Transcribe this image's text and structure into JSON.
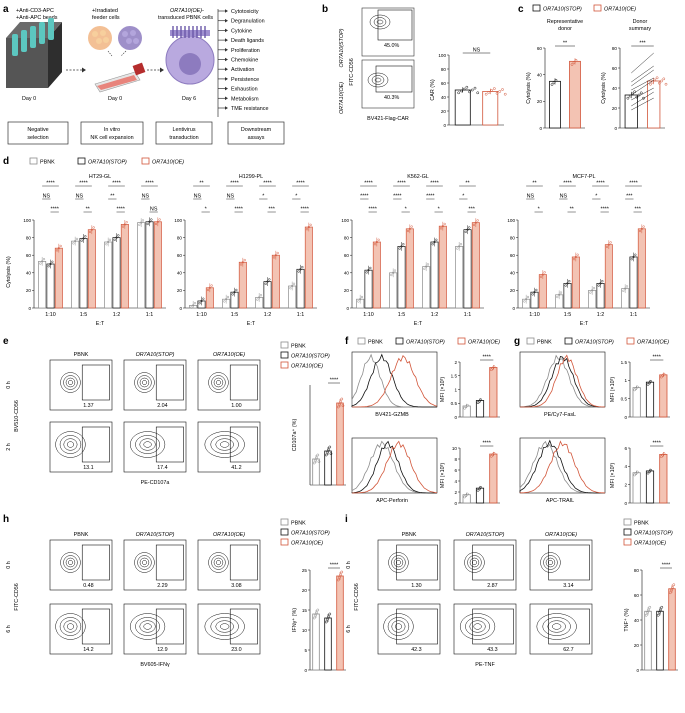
{
  "panels": {
    "a": "a",
    "b": "b",
    "c": "c",
    "d": "d",
    "e": "e",
    "f": "f",
    "g": "g",
    "h": "h",
    "i": "i"
  },
  "legend": {
    "pbnk": "PBNK",
    "stop": "OR7A10(STOP)",
    "oe": "OR7A10(OE)"
  },
  "colors": {
    "pbnk": "#8c8c8c",
    "stop": "#111111",
    "oe": "#d2563a",
    "oe_fill": "#f3c3b3",
    "cell_green": "#5fa86f",
    "cell_purple": "#8d7bbf",
    "cell_orange": "#f0b07a"
  },
  "panel_a": {
    "label1": "+Anti-CD3-APC",
    "label2": "+Anti-APC beads",
    "label3": "+Irradiated",
    "label3b": "feeder cells",
    "label4": "OR7A10(OE)-",
    "label4b": "transduced PBNK cells",
    "day_a": "Day 0",
    "day_b": "Day 0",
    "day_c": "Day 6",
    "box1": [
      "Negative",
      "selection"
    ],
    "box2": [
      "In vitro",
      "NK cell expansion"
    ],
    "box3": [
      "Lentivirus",
      "transduction"
    ],
    "box4": [
      "Downstream",
      "assays"
    ],
    "assays": [
      "Cytotoxicity",
      "Degranulation",
      "Cytokine",
      "Death ligands",
      "Proliferation",
      "Chemokine",
      "Activation",
      "Persistence",
      "Exhaustion",
      "Metabolism",
      "TME resistance"
    ]
  },
  "panel_b": {
    "y_axis": "FITC-CD56",
    "x_axis": "BV421-Flag-CAR",
    "row1": "OR7A10(STOP)",
    "row2": "OR7A10(OE)",
    "gate1": "45.0%",
    "gate2": "40.3%",
    "ticks_y": [
      "10⁴",
      "10³",
      "0"
    ],
    "ticks_x": [
      "0",
      "10³",
      "10⁴",
      "10⁵"
    ],
    "sig": "NS"
  },
  "panel_c": {
    "left_title": [
      "Representative",
      "donor"
    ],
    "right_title": [
      "Donor",
      "summary"
    ],
    "ylabel": "Cytolysis (%)",
    "sig_left": "**",
    "sig_right": "***"
  },
  "panel_d": {
    "ylabel": "Cytolysis (%)",
    "xlabel": "E:T",
    "ticks_y": [
      "0",
      "20",
      "40",
      "60",
      "80",
      "100"
    ],
    "ratios": [
      "1:10",
      "1:5",
      "1:2",
      "1:1"
    ]
  },
  "panel_e": {
    "cols": [
      "PBNK",
      "OR7A10(STOP)",
      "OR7A10(OE)"
    ],
    "rows": [
      "0 h",
      "2 h"
    ],
    "y_axis": "BV510-CD56",
    "x_axis": "PE-CD107a",
    "values_0h": [
      "1.37",
      "2.04",
      "1.00"
    ],
    "values_2h": [
      "13.1",
      "17.4",
      "41.2"
    ],
    "bar_ylabel": "CD107a⁺ (%)",
    "bar_ticks": [
      "0",
      "10",
      "20",
      "30",
      "40",
      "50"
    ],
    "sig": "****"
  },
  "panel_f": {
    "top_x": "BV421-GZMB",
    "bottom_x": "APC-Perforin",
    "mfi_top": "MFI (×10³)",
    "mfi_bottom": "MFI (×10³)",
    "sig": "****"
  },
  "panel_g": {
    "top_x": "PE/Cy7-FasL",
    "bottom_x": "APC-TRAIL",
    "mfi_top": "MFI (×10³)",
    "mfi_bottom": "MFI (×10³)",
    "sig": "****"
  },
  "panel_h": {
    "cols": [
      "PBNK",
      "OR7A10(STOP)",
      "OR7A10(OE)"
    ],
    "rows": [
      "0 h",
      "6 h"
    ],
    "y_axis": "FITC-CD56",
    "x_axis": "BV605-IFNγ",
    "values_0h": [
      "0.48",
      "2.29",
      "3.08"
    ],
    "values_6h": [
      "14.2",
      "12.9",
      "23.0"
    ],
    "bar_ylabel": "IFNγ⁺ (%)",
    "sig": "****"
  },
  "panel_i": {
    "cols": [
      "PBNK",
      "OR7A10(STOP)",
      "OR7A10(OE)"
    ],
    "rows": [
      "0 h",
      "6 h"
    ],
    "y_axis": "FITC-CD56",
    "x_axis": "PE-TNF",
    "values_0h": [
      "1.30",
      "2.87",
      "3.14"
    ],
    "values_6h": [
      "42.3",
      "43.3",
      "62.7"
    ],
    "bar_ylabel": "TNF⁺ (%)",
    "sig": "****"
  },
  "chart_data": [
    {
      "type": "bar",
      "panel": "b",
      "ylabel": "CAR (%)",
      "categories": [
        "OR7A10(STOP)",
        "OR7A10(OE)"
      ],
      "values": [
        50,
        48
      ],
      "ylim": [
        0,
        100
      ],
      "ticks": [
        0,
        20,
        40,
        60,
        80,
        100
      ]
    },
    {
      "type": "bar",
      "panel": "c-left",
      "ylabel": "Cytolysis (%)",
      "categories": [
        "OR7A10(STOP)",
        "OR7A10(OE)"
      ],
      "values": [
        35,
        50
      ],
      "ylim": [
        0,
        60
      ],
      "ticks": [
        0,
        20,
        40,
        60
      ]
    },
    {
      "type": "bar",
      "panel": "c-right",
      "ylabel": "Cytolysis (%)",
      "categories": [
        "OR7A10(STOP)",
        "OR7A10(OE)"
      ],
      "values": [
        33,
        47
      ],
      "ylim": [
        0,
        80
      ],
      "ticks": [
        0,
        20,
        40,
        60,
        80
      ]
    },
    {
      "type": "bar",
      "panel": "d",
      "title": "HT29-GL",
      "categories": [
        "1:10",
        "1:5",
        "1:2",
        "1:1"
      ],
      "series": [
        {
          "name": "PBNK",
          "values": [
            53,
            76,
            75,
            97
          ]
        },
        {
          "name": "OR7A10(STOP)",
          "values": [
            50,
            79,
            80,
            98
          ]
        },
        {
          "name": "OR7A10(OE)",
          "values": [
            68,
            89,
            95,
            98
          ]
        }
      ],
      "ylim": [
        0,
        100
      ],
      "sig_top": [
        "****",
        "****",
        "****",
        "****"
      ],
      "sig_mid": [
        "NS",
        "NS",
        "**",
        "NS"
      ],
      "sig_bot": [
        "****",
        "**",
        "****",
        "NS"
      ]
    },
    {
      "type": "bar",
      "panel": "d",
      "title": "H1299-PL",
      "categories": [
        "1:10",
        "1:5",
        "1:2",
        "1:1"
      ],
      "series": [
        {
          "name": "PBNK",
          "values": [
            3,
            10,
            12,
            25
          ]
        },
        {
          "name": "OR7A10(STOP)",
          "values": [
            8,
            18,
            30,
            44
          ]
        },
        {
          "name": "OR7A10(OE)",
          "values": [
            23,
            52,
            60,
            92
          ]
        }
      ],
      "ylim": [
        0,
        100
      ],
      "sig_top": [
        "**",
        "****",
        "****",
        "****"
      ],
      "sig_mid": [
        "NS",
        "NS",
        "*",
        "*"
      ],
      "sig_bot": [
        "*",
        "****",
        "***",
        "****"
      ]
    },
    {
      "type": "bar",
      "panel": "d",
      "title": "K562-GL",
      "categories": [
        "1:10",
        "1:5",
        "1:2",
        "1:1"
      ],
      "series": [
        {
          "name": "PBNK",
          "values": [
            10,
            40,
            47,
            70
          ]
        },
        {
          "name": "OR7A10(STOP)",
          "values": [
            43,
            70,
            75,
            89
          ]
        },
        {
          "name": "OR7A10(OE)",
          "values": [
            75,
            90,
            93,
            97
          ]
        }
      ],
      "ylim": [
        0,
        100
      ],
      "sig_top": [
        "****",
        "****",
        "****",
        "**"
      ],
      "sig_mid": [
        "****",
        "****",
        "****",
        "*"
      ],
      "sig_bot": [
        "****",
        "*",
        "*",
        "***"
      ]
    },
    {
      "type": "bar",
      "panel": "d",
      "title": "MCF7-PL",
      "categories": [
        "1:10",
        "1:5",
        "1:2",
        "1:1"
      ],
      "series": [
        {
          "name": "PBNK",
          "values": [
            10,
            15,
            20,
            22
          ]
        },
        {
          "name": "OR7A10(STOP)",
          "values": [
            18,
            28,
            28,
            58
          ]
        },
        {
          "name": "OR7A10(OE)",
          "values": [
            38,
            58,
            72,
            90
          ]
        }
      ],
      "ylim": [
        0,
        100
      ],
      "sig_top": [
        "**",
        "****",
        "****",
        "****"
      ],
      "sig_mid": [
        "NS",
        "NS",
        "*",
        "***"
      ],
      "sig_bot": [
        "*",
        "**",
        "****",
        "***"
      ]
    },
    {
      "type": "bar",
      "panel": "e",
      "ylabel": "CD107a⁺ (%)",
      "categories": [
        "PBNK",
        "OR7A10(STOP)",
        "OR7A10(OE)"
      ],
      "values": [
        13,
        17,
        41
      ],
      "ylim": [
        0,
        50
      ]
    },
    {
      "type": "bar",
      "panel": "f-top",
      "ylabel": "MFI (×10³)",
      "categories": [
        "PBNK",
        "OR7A10(STOP)",
        "OR7A10(OE)"
      ],
      "values": [
        0.4,
        0.6,
        1.8
      ],
      "ylim": [
        0,
        2
      ],
      "ticks": [
        0,
        0.5,
        1.0,
        1.5,
        2.0
      ]
    },
    {
      "type": "bar",
      "panel": "f-bottom",
      "ylabel": "MFI (×10³)",
      "categories": [
        "PBNK",
        "OR7A10(STOP)",
        "OR7A10(OE)"
      ],
      "values": [
        1.5,
        2.7,
        8.9
      ],
      "ylim": [
        0,
        10
      ],
      "ticks": [
        0,
        2,
        4,
        6,
        8,
        10
      ]
    },
    {
      "type": "bar",
      "panel": "g-top",
      "ylabel": "MFI (×10³)",
      "categories": [
        "PBNK",
        "OR7A10(STOP)",
        "OR7A10(OE)"
      ],
      "values": [
        0.8,
        0.95,
        1.15
      ],
      "ylim": [
        0,
        1.5
      ],
      "ticks": [
        0,
        0.5,
        1.0,
        1.5
      ]
    },
    {
      "type": "bar",
      "panel": "g-bottom",
      "ylabel": "MFI (×10³)",
      "categories": [
        "PBNK",
        "OR7A10(STOP)",
        "OR7A10(OE)"
      ],
      "values": [
        3.3,
        3.5,
        5.3
      ],
      "ylim": [
        0,
        6
      ],
      "ticks": [
        0,
        2,
        4,
        6
      ]
    },
    {
      "type": "bar",
      "panel": "h",
      "ylabel": "IFNγ⁺ (%)",
      "categories": [
        "PBNK",
        "OR7A10(STOP)",
        "OR7A10(OE)"
      ],
      "values": [
        14,
        13,
        23.5
      ],
      "ylim": [
        0,
        25
      ],
      "ticks": [
        0,
        5,
        10,
        15,
        20,
        25
      ]
    },
    {
      "type": "bar",
      "panel": "i",
      "ylabel": "TNF⁺ (%)",
      "categories": [
        "PBNK",
        "OR7A10(STOP)",
        "OR7A10(OE)"
      ],
      "values": [
        47,
        47,
        65
      ],
      "ylim": [
        0,
        80
      ],
      "ticks": [
        0,
        20,
        40,
        60,
        80
      ]
    }
  ]
}
